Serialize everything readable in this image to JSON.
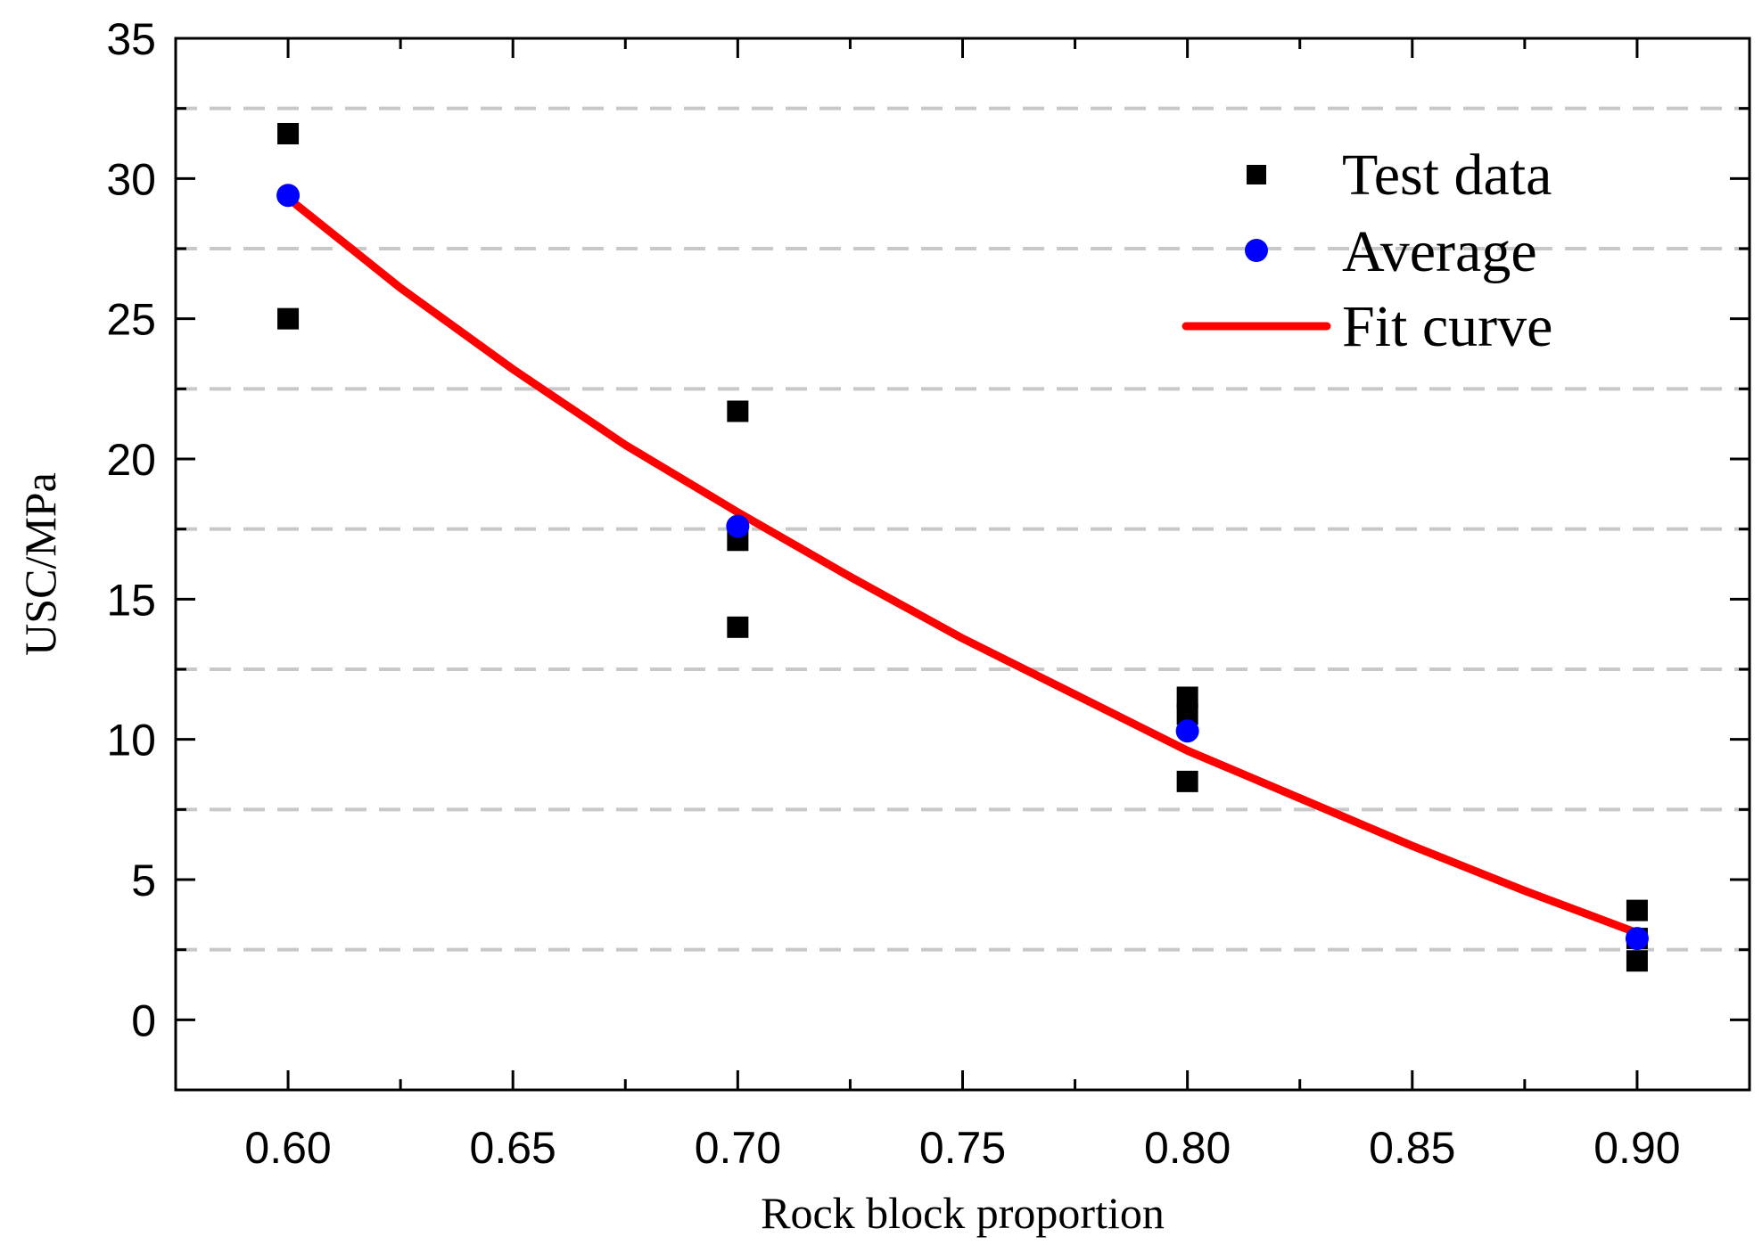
{
  "chart_data": {
    "type": "scatter",
    "title": "",
    "xlabel": "Rock block proportion",
    "ylabel": "USC/MPa",
    "xlim": [
      0.575,
      0.925
    ],
    "ylim": [
      -2.5,
      35
    ],
    "x_ticks": [
      "0.60",
      "0.65",
      "0.70",
      "0.75",
      "0.80",
      "0.85",
      "0.90"
    ],
    "x_tick_values": [
      0.6,
      0.65,
      0.7,
      0.75,
      0.8,
      0.85,
      0.9
    ],
    "x_minor_ticks": [
      0.625,
      0.675,
      0.725,
      0.775,
      0.825,
      0.875
    ],
    "y_ticks": [
      "0",
      "5",
      "10",
      "15",
      "20",
      "25",
      "30",
      "35"
    ],
    "y_tick_values": [
      0,
      5,
      10,
      15,
      20,
      25,
      30,
      35
    ],
    "y_minor_ticks": [
      2.5,
      7.5,
      12.5,
      17.5,
      22.5,
      27.5,
      32.5
    ],
    "grid": "dashed horizontal lines at minor y ticks",
    "legend_position": "top-right",
    "series": [
      {
        "name": "Test data",
        "marker": "square",
        "color": "#000000",
        "points": [
          {
            "x": 0.6,
            "y": 31.6
          },
          {
            "x": 0.6,
            "y": 25.0
          },
          {
            "x": 0.7,
            "y": 21.7
          },
          {
            "x": 0.7,
            "y": 17.1
          },
          {
            "x": 0.7,
            "y": 14.0
          },
          {
            "x": 0.8,
            "y": 11.5
          },
          {
            "x": 0.8,
            "y": 10.9
          },
          {
            "x": 0.8,
            "y": 8.5
          },
          {
            "x": 0.9,
            "y": 3.9
          },
          {
            "x": 0.9,
            "y": 2.9
          },
          {
            "x": 0.9,
            "y": 2.1
          }
        ]
      },
      {
        "name": "Average",
        "marker": "circle",
        "color": "#0000ff",
        "points": [
          {
            "x": 0.6,
            "y": 29.4
          },
          {
            "x": 0.7,
            "y": 17.6
          },
          {
            "x": 0.8,
            "y": 10.3
          },
          {
            "x": 0.9,
            "y": 2.9
          }
        ]
      },
      {
        "name": "Fit curve",
        "marker": "line",
        "color": "#ff0000",
        "points": [
          {
            "x": 0.6,
            "y": 29.3
          },
          {
            "x": 0.625,
            "y": 26.1
          },
          {
            "x": 0.65,
            "y": 23.2
          },
          {
            "x": 0.675,
            "y": 20.5
          },
          {
            "x": 0.7,
            "y": 18.1
          },
          {
            "x": 0.725,
            "y": 15.8
          },
          {
            "x": 0.75,
            "y": 13.6
          },
          {
            "x": 0.775,
            "y": 11.6
          },
          {
            "x": 0.8,
            "y": 9.6
          },
          {
            "x": 0.825,
            "y": 7.9
          },
          {
            "x": 0.85,
            "y": 6.2
          },
          {
            "x": 0.875,
            "y": 4.6
          },
          {
            "x": 0.9,
            "y": 3.1
          }
        ]
      }
    ]
  }
}
